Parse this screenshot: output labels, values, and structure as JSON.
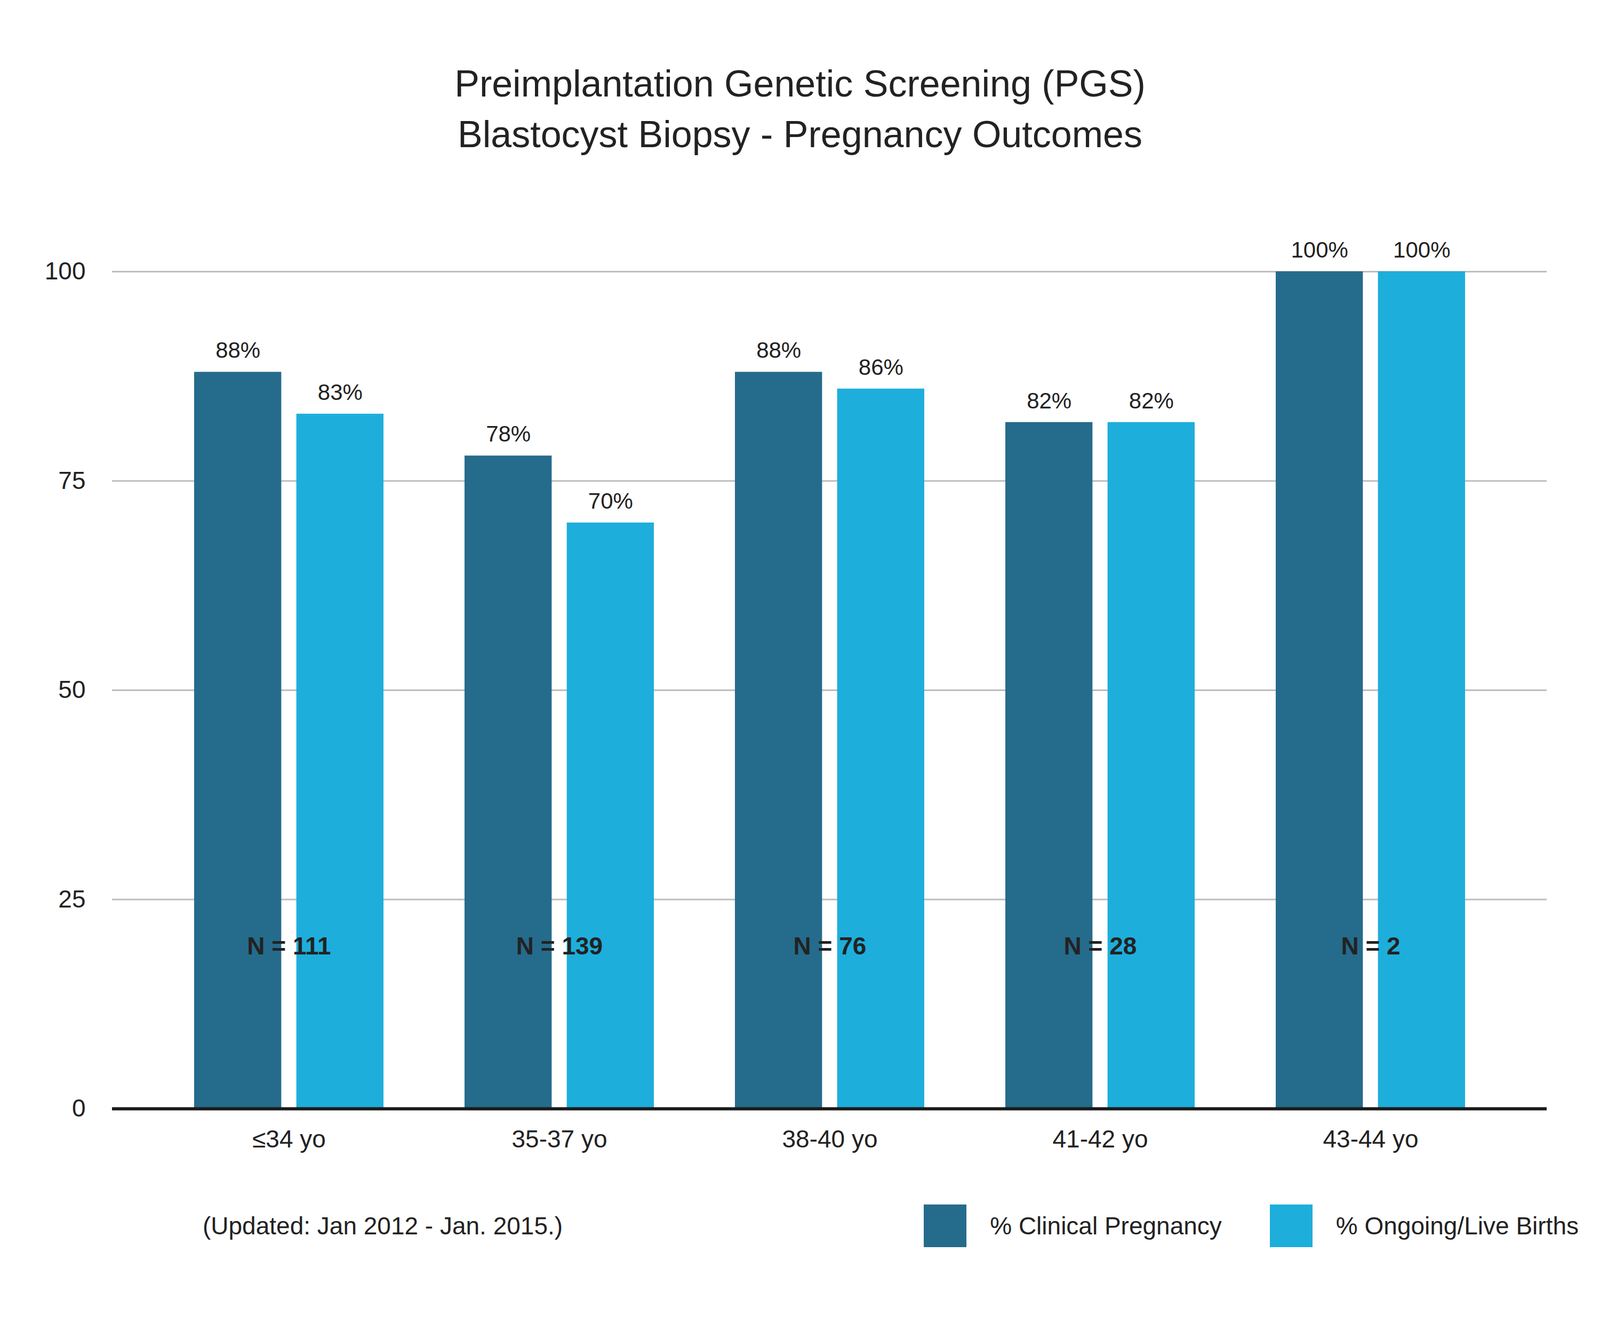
{
  "chart_data": {
    "type": "bar",
    "title": "Preimplantation Genetic Screening (PGS)",
    "subtitle": "Blastocyst Biopsy - Pregnancy Outcomes",
    "caption": "(Updated: Jan 2012 - Jan. 2015.)",
    "categories": [
      "≤34 yo",
      "35-37 yo",
      "38-40 yo",
      "41-42 yo",
      "43-44 yo"
    ],
    "annotations": [
      "N = 111",
      "N = 139",
      "N = 76",
      "N = 28",
      "N = 2"
    ],
    "series": [
      {
        "name": "% Clinical Pregnancy",
        "color": "#256b8c",
        "values": [
          88,
          78,
          88,
          82,
          100
        ],
        "value_labels": [
          "88%",
          "78%",
          "88%",
          "82%",
          "100%"
        ]
      },
      {
        "name": "% Ongoing/Live Births",
        "color": "#1eaedb",
        "values": [
          83,
          70,
          86,
          82,
          100
        ],
        "value_labels": [
          "83%",
          "70%",
          "86%",
          "82%",
          "100%"
        ]
      }
    ],
    "ylim": [
      0,
      100
    ],
    "yticks": [
      0,
      25,
      50,
      75,
      100
    ],
    "grid": true,
    "data_labels": true,
    "legend": "bottom"
  }
}
